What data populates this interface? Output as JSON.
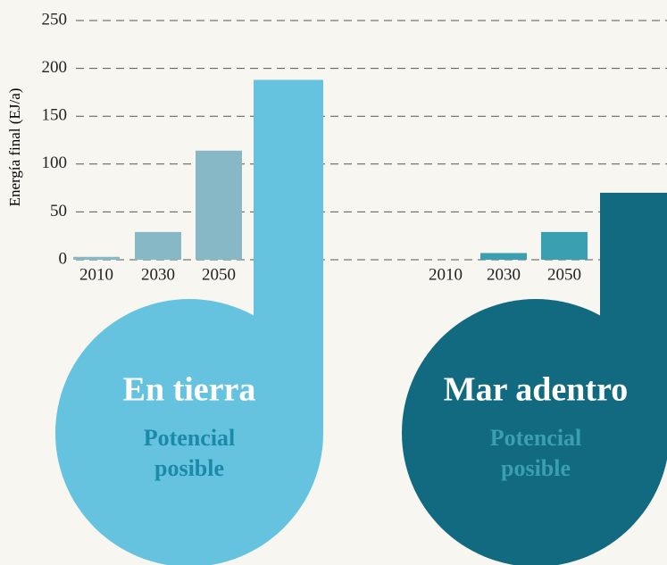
{
  "chart_data": {
    "type": "bar",
    "ylabel": "Energía final (EJ/a)",
    "ylim": [
      0,
      250
    ],
    "yticks": [
      0,
      50,
      100,
      150,
      200,
      250
    ],
    "grid": true,
    "groups": [
      {
        "name": "En tierra",
        "categories": [
          "2010",
          "2030",
          "2050"
        ],
        "values": [
          3,
          29,
          114
        ],
        "color": "#86b8c6",
        "potential": {
          "label": "Potencial posible",
          "value": 188,
          "color": "#65c3e0",
          "label_color": "#1a8aa8"
        }
      },
      {
        "name": "Mar adentro",
        "categories": [
          "2010",
          "2030",
          "2050"
        ],
        "values": [
          0,
          7,
          29
        ],
        "color": "#3a9fb1",
        "potential": {
          "label": "Potencial posible",
          "value": 70,
          "color": "#116a80",
          "label_color": "#3a9fb1"
        }
      }
    ]
  }
}
